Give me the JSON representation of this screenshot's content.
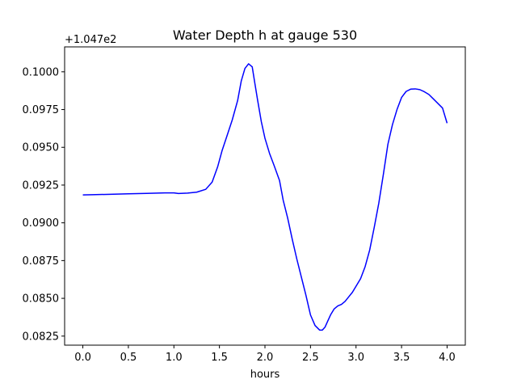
{
  "chart_data": {
    "type": "line",
    "title": "Water Depth h at gauge 530",
    "xlabel": "hours",
    "ylabel": "",
    "y_offset_label": "+1.047e2",
    "xlim": [
      -0.2,
      4.2
    ],
    "ylim": [
      0.0819,
      0.10165
    ],
    "x_ticks": [
      0.0,
      0.5,
      1.0,
      1.5,
      2.0,
      2.5,
      3.0,
      3.5,
      4.0
    ],
    "x_tick_labels": [
      "0.0",
      "0.5",
      "1.0",
      "1.5",
      "2.0",
      "2.5",
      "3.0",
      "3.5",
      "4.0"
    ],
    "y_ticks": [
      0.0825,
      0.085,
      0.0875,
      0.09,
      0.0925,
      0.095,
      0.0975,
      0.1
    ],
    "y_tick_labels": [
      "0.0825",
      "0.0850",
      "0.0875",
      "0.0900",
      "0.0925",
      "0.0950",
      "0.0975",
      "0.1000"
    ],
    "grid": false,
    "series": [
      {
        "color": "#0000ff",
        "x": [
          0.0,
          0.1,
          0.3,
          0.5,
          0.7,
          0.9,
          1.0,
          1.05,
          1.15,
          1.25,
          1.35,
          1.42,
          1.48,
          1.53,
          1.58,
          1.64,
          1.7,
          1.74,
          1.78,
          1.82,
          1.86,
          1.89,
          1.92,
          1.96,
          2.0,
          2.05,
          2.1,
          2.16,
          2.2,
          2.25,
          2.3,
          2.35,
          2.4,
          2.45,
          2.5,
          2.55,
          2.6,
          2.63,
          2.66,
          2.69,
          2.72,
          2.76,
          2.8,
          2.84,
          2.88,
          2.92,
          2.96,
          3.0,
          3.05,
          3.1,
          3.15,
          3.2,
          3.25,
          3.3,
          3.35,
          3.4,
          3.45,
          3.5,
          3.55,
          3.6,
          3.65,
          3.7,
          3.75,
          3.8,
          3.85,
          3.9,
          3.95,
          4.0
        ],
        "y": [
          0.09185,
          0.09186,
          0.09189,
          0.09192,
          0.09195,
          0.09198,
          0.09198,
          0.09194,
          0.09197,
          0.09203,
          0.09222,
          0.0927,
          0.0937,
          0.0948,
          0.0957,
          0.0968,
          0.0981,
          0.0994,
          0.10022,
          0.10053,
          0.10033,
          0.0992,
          0.0981,
          0.0967,
          0.0956,
          0.0946,
          0.0938,
          0.0928,
          0.0915,
          0.0903,
          0.0889,
          0.0876,
          0.0864,
          0.0852,
          0.0839,
          0.0832,
          0.0829,
          0.0829,
          0.0831,
          0.0835,
          0.0839,
          0.0843,
          0.0845,
          0.0846,
          0.0848,
          0.0851,
          0.0854,
          0.0858,
          0.0863,
          0.0871,
          0.0882,
          0.0897,
          0.0913,
          0.0932,
          0.0952,
          0.0965,
          0.0975,
          0.0983,
          0.0987,
          0.09885,
          0.09887,
          0.09882,
          0.09868,
          0.0985,
          0.0982,
          0.0979,
          0.0976,
          0.0966
        ]
      }
    ]
  }
}
